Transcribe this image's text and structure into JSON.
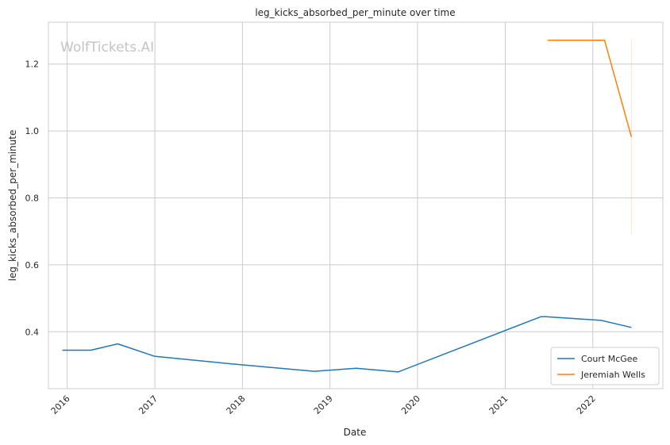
{
  "chart_data": {
    "type": "line",
    "title": "leg_kicks_absorbed_per_minute over time",
    "xlabel": "Date",
    "ylabel": "leg_kicks_absorbed_per_minute",
    "watermark": "WolfTickets.AI",
    "x_ticks": [
      "2016",
      "2017",
      "2018",
      "2019",
      "2020",
      "2021",
      "2022"
    ],
    "y_ticks": [
      "0.4",
      "0.6",
      "0.8",
      "1.0",
      "1.2"
    ],
    "xlim": [
      "2015-10-15",
      "2022-10-20"
    ],
    "ylim": [
      0.23,
      1.325
    ],
    "grid": true,
    "legend_position": "bottom-right",
    "series": [
      {
        "name": "Court McGee",
        "color": "#1f77b4",
        "points": [
          {
            "x": "2015-12-12",
            "y": 0.345
          },
          {
            "x": "2016-04-09",
            "y": 0.345
          },
          {
            "x": "2016-07-30",
            "y": 0.364
          },
          {
            "x": "2016-12-30",
            "y": 0.327
          },
          {
            "x": "2017-11-04",
            "y": 0.305
          },
          {
            "x": "2018-10-27",
            "y": 0.282
          },
          {
            "x": "2019-04-20",
            "y": 0.291
          },
          {
            "x": "2019-10-12",
            "y": 0.28
          },
          {
            "x": "2021-05-29",
            "y": 0.445
          },
          {
            "x": "2021-06-19",
            "y": 0.445
          },
          {
            "x": "2022-02-05",
            "y": 0.434
          },
          {
            "x": "2022-06-11",
            "y": 0.413
          }
        ]
      },
      {
        "name": "Jeremiah Wells",
        "color": "#ff7f0e",
        "points": [
          {
            "x": "2021-06-26",
            "y": 1.271
          },
          {
            "x": "2022-02-19",
            "y": 1.271
          },
          {
            "x": "2022-06-11",
            "y": 0.982
          }
        ],
        "band": {
          "x": "2022-06-11",
          "y_low": 0.69,
          "y_high": 1.271
        }
      }
    ]
  }
}
